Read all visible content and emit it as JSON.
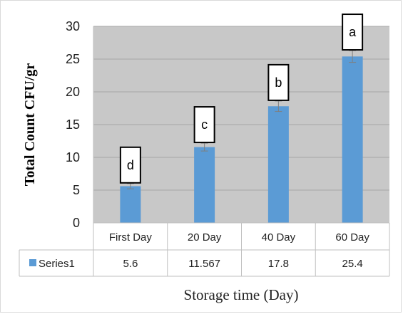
{
  "chart_data": {
    "type": "bar",
    "categories": [
      "First Day",
      "20 Day",
      "40 Day",
      "60 Day"
    ],
    "series": [
      {
        "name": "Series1",
        "values": [
          5.6,
          11.567,
          17.8,
          25.4
        ],
        "value_labels": [
          "5.6",
          "11.567",
          "17.8",
          "25.4"
        ],
        "errors": [
          0.4,
          0.6,
          0.8,
          0.9
        ],
        "color": "#5b9bd5"
      }
    ],
    "annotations": [
      "d",
      "c",
      "b",
      "a"
    ],
    "ylabel": "Total Count CFU/gr",
    "xlabel": "Storage time (Day)",
    "ylim": [
      0,
      30
    ],
    "yticks": [
      0,
      5,
      10,
      15,
      20,
      25,
      30
    ],
    "grid": true,
    "data_table": true,
    "plot_background": "#c8c8c8"
  }
}
